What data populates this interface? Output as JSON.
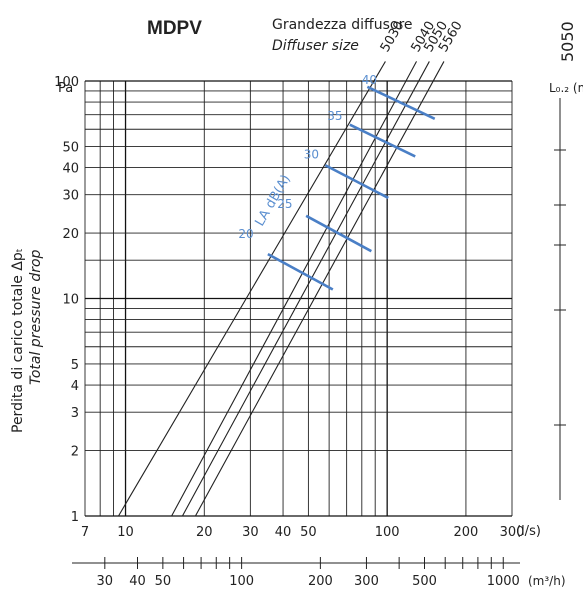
{
  "header": {
    "model": "MDPV",
    "size_label_it": "Grandezza diffusore",
    "size_label_en": "Diffuser size",
    "right_size": "5050",
    "right_axis_label": "L₀.₂ (m"
  },
  "chart_data": {
    "type": "line",
    "x_scale": "log",
    "y_scale": "log",
    "xlim": [
      7,
      300
    ],
    "ylim": [
      1,
      100
    ],
    "x_unit": "(l/s)",
    "y_unit": "Pa",
    "ylabel_it": "Perdita di carico totale Δpₜ",
    "ylabel_en": "Total pressure drop",
    "x_ticks": [
      "7",
      "10",
      "20",
      "30",
      "40",
      "50",
      "100",
      "200",
      "300"
    ],
    "x_tick_values": [
      7,
      10,
      20,
      30,
      40,
      50,
      100,
      200,
      300
    ],
    "y_ticks": [
      "1",
      "2",
      "3",
      "4",
      "5",
      "10",
      "20",
      "30",
      "40",
      "50",
      "100"
    ],
    "y_tick_values": [
      1,
      2,
      3,
      4,
      5,
      10,
      20,
      30,
      40,
      50,
      100
    ],
    "secondary_x_unit": "(m³/h)",
    "secondary_x_ticks": [
      "30",
      "40",
      "50",
      "100",
      "200",
      "300",
      "500",
      "1000"
    ],
    "secondary_x_tick_values": [
      30,
      40,
      50,
      100,
      200,
      300,
      500,
      1000
    ],
    "series": [
      {
        "name": "5030",
        "points": [
          [
            9.4,
            1
          ],
          [
            89,
            100
          ]
        ]
      },
      {
        "name": "5040",
        "points": [
          [
            15,
            1
          ],
          [
            118,
            100
          ]
        ]
      },
      {
        "name": "5050",
        "points": [
          [
            16.5,
            1
          ],
          [
            132,
            100
          ]
        ]
      },
      {
        "name": "5560",
        "points": [
          [
            18.5,
            1
          ],
          [
            150,
            100
          ]
        ]
      }
    ],
    "noise_label": "LA dB(A)",
    "noise_lines": [
      {
        "label": "20",
        "from": [
          35,
          16
        ],
        "to": [
          62,
          11
        ],
        "label_at": [
          27,
          19
        ]
      },
      {
        "label": "25",
        "from": [
          49,
          24
        ],
        "to": [
          87,
          16.5
        ],
        "label_at": [
          38,
          26
        ]
      },
      {
        "label": "30",
        "from": [
          58,
          41
        ],
        "to": [
          101,
          29
        ],
        "label_at": [
          48,
          44
        ]
      },
      {
        "label": "35",
        "from": [
          72,
          63
        ],
        "to": [
          128,
          45
        ],
        "label_at": [
          59,
          66
        ]
      },
      {
        "label": "40",
        "from": [
          84,
          94
        ],
        "to": [
          152,
          67
        ],
        "label_at": [
          80,
          97
        ]
      }
    ]
  }
}
